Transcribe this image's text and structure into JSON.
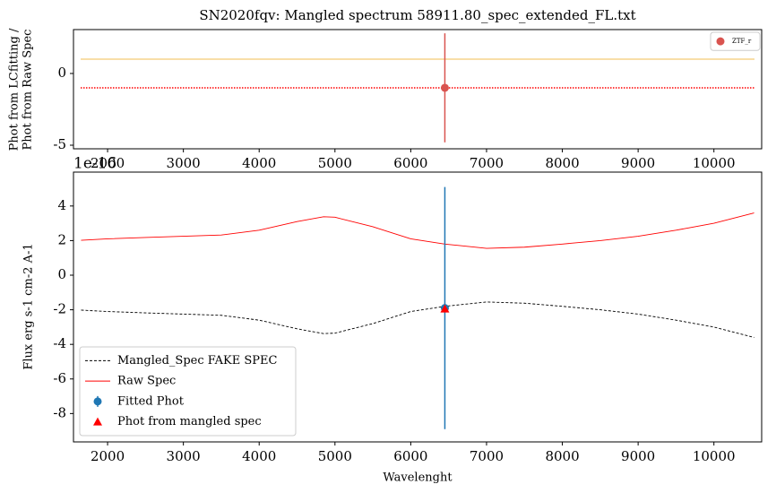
{
  "chart_data": [
    {
      "type": "line",
      "title": "SN2020fqv: Mangled spectrum 58911.80_spec_extended_FL.txt",
      "y_label": [
        "Phot from LCfitting /",
        "Phot from Raw Spec"
      ],
      "xlim": [
        1550,
        10630
      ],
      "ylim": [
        -5.25,
        3.06
      ],
      "xticks": [
        2000,
        3000,
        4000,
        5000,
        6000,
        7000,
        8000,
        9000,
        10000
      ],
      "yticks": [
        -5,
        0
      ],
      "hlines": [
        {
          "value": 1,
          "color": "#f5d48c",
          "dash": "solid"
        },
        {
          "value": -1,
          "color": "#ff0000",
          "dash": "dotted"
        }
      ],
      "legend": "upper right",
      "series": [
        {
          "name": "ZTF_r",
          "color": "#d9534f",
          "marker": "circle",
          "x": [
            6450
          ],
          "values": [
            -1
          ],
          "errors": [
            3.8
          ]
        }
      ]
    },
    {
      "type": "line",
      "offset_label": "1e-16",
      "x_label": "Wavelenght",
      "y_label": [
        "Flux erg s-1 cm-2 A-1"
      ],
      "xlim": [
        1550,
        10630
      ],
      "ylim": [
        -9.64,
        5.96
      ],
      "xticks": [
        2000,
        3000,
        4000,
        5000,
        6000,
        7000,
        8000,
        9000,
        10000
      ],
      "yticks": [
        -8,
        -6,
        -4,
        -2,
        0,
        2,
        4
      ],
      "legend": "lower left",
      "series": [
        {
          "name": "Mangled_Spec FAKE SPEC",
          "color": "#000000",
          "dash": "dashed",
          "x": [
            1650,
            2000,
            2500,
            3000,
            3500,
            4000,
            4500,
            4850,
            5000,
            5500,
            6000,
            6450,
            7000,
            7500,
            8000,
            8500,
            9000,
            9500,
            10000,
            10530
          ],
          "values": [
            -2.02,
            -2.1,
            -2.18,
            -2.25,
            -2.32,
            -2.6,
            -3.1,
            -3.38,
            -3.35,
            -2.8,
            -2.1,
            -1.8,
            -1.55,
            -1.62,
            -1.8,
            -2.0,
            -2.25,
            -2.6,
            -3.0,
            -3.6
          ]
        },
        {
          "name": "Raw Spec",
          "color": "#ff0000",
          "dash": "solid",
          "x": [
            1650,
            2000,
            2500,
            3000,
            3500,
            4000,
            4500,
            4850,
            5000,
            5500,
            6000,
            6450,
            7000,
            7500,
            8000,
            8500,
            9000,
            9500,
            10000,
            10530
          ],
          "values": [
            2.02,
            2.1,
            2.18,
            2.25,
            2.32,
            2.6,
            3.1,
            3.38,
            3.35,
            2.8,
            2.1,
            1.8,
            1.55,
            1.62,
            1.8,
            2.0,
            2.25,
            2.6,
            3.0,
            3.6
          ]
        },
        {
          "name": "Fitted Phot",
          "color": "#1f77b4",
          "marker": "circle",
          "x": [
            6450
          ],
          "values": [
            -1.9
          ],
          "errors": [
            7.0
          ]
        },
        {
          "name": "Phot from mangled spec",
          "color": "#ff0000",
          "marker": "triangle",
          "x": [
            6450
          ],
          "values": [
            -1.95
          ]
        }
      ]
    }
  ]
}
